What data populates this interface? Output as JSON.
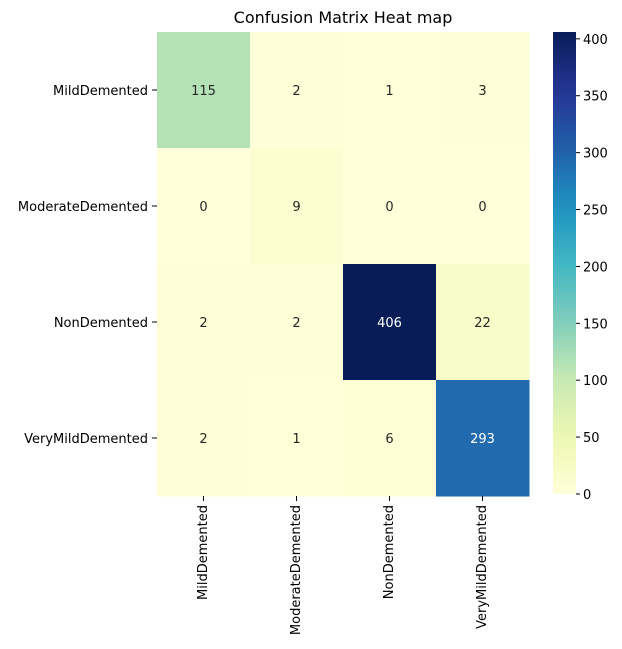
{
  "chart_data": {
    "type": "heatmap",
    "title": "Confusion Matrix Heat map",
    "xlabel": "",
    "ylabel": "",
    "row_labels": [
      "MildDemented",
      "ModerateDemented",
      "NonDemented",
      "VeryMildDemented"
    ],
    "col_labels": [
      "MildDemented",
      "ModerateDemented",
      "NonDemented",
      "VeryMildDemented"
    ],
    "values": [
      [
        115,
        2,
        1,
        3
      ],
      [
        0,
        9,
        0,
        0
      ],
      [
        2,
        2,
        406,
        22
      ],
      [
        2,
        1,
        6,
        293
      ]
    ],
    "colormap": "YlGnBu",
    "colorbar": {
      "min": 0,
      "max": 406,
      "ticks": [
        0,
        50,
        100,
        150,
        200,
        250,
        300,
        350,
        400
      ]
    },
    "colors": {
      "low": "#ffffd9",
      "high": "#081d58"
    },
    "annotations": true
  }
}
